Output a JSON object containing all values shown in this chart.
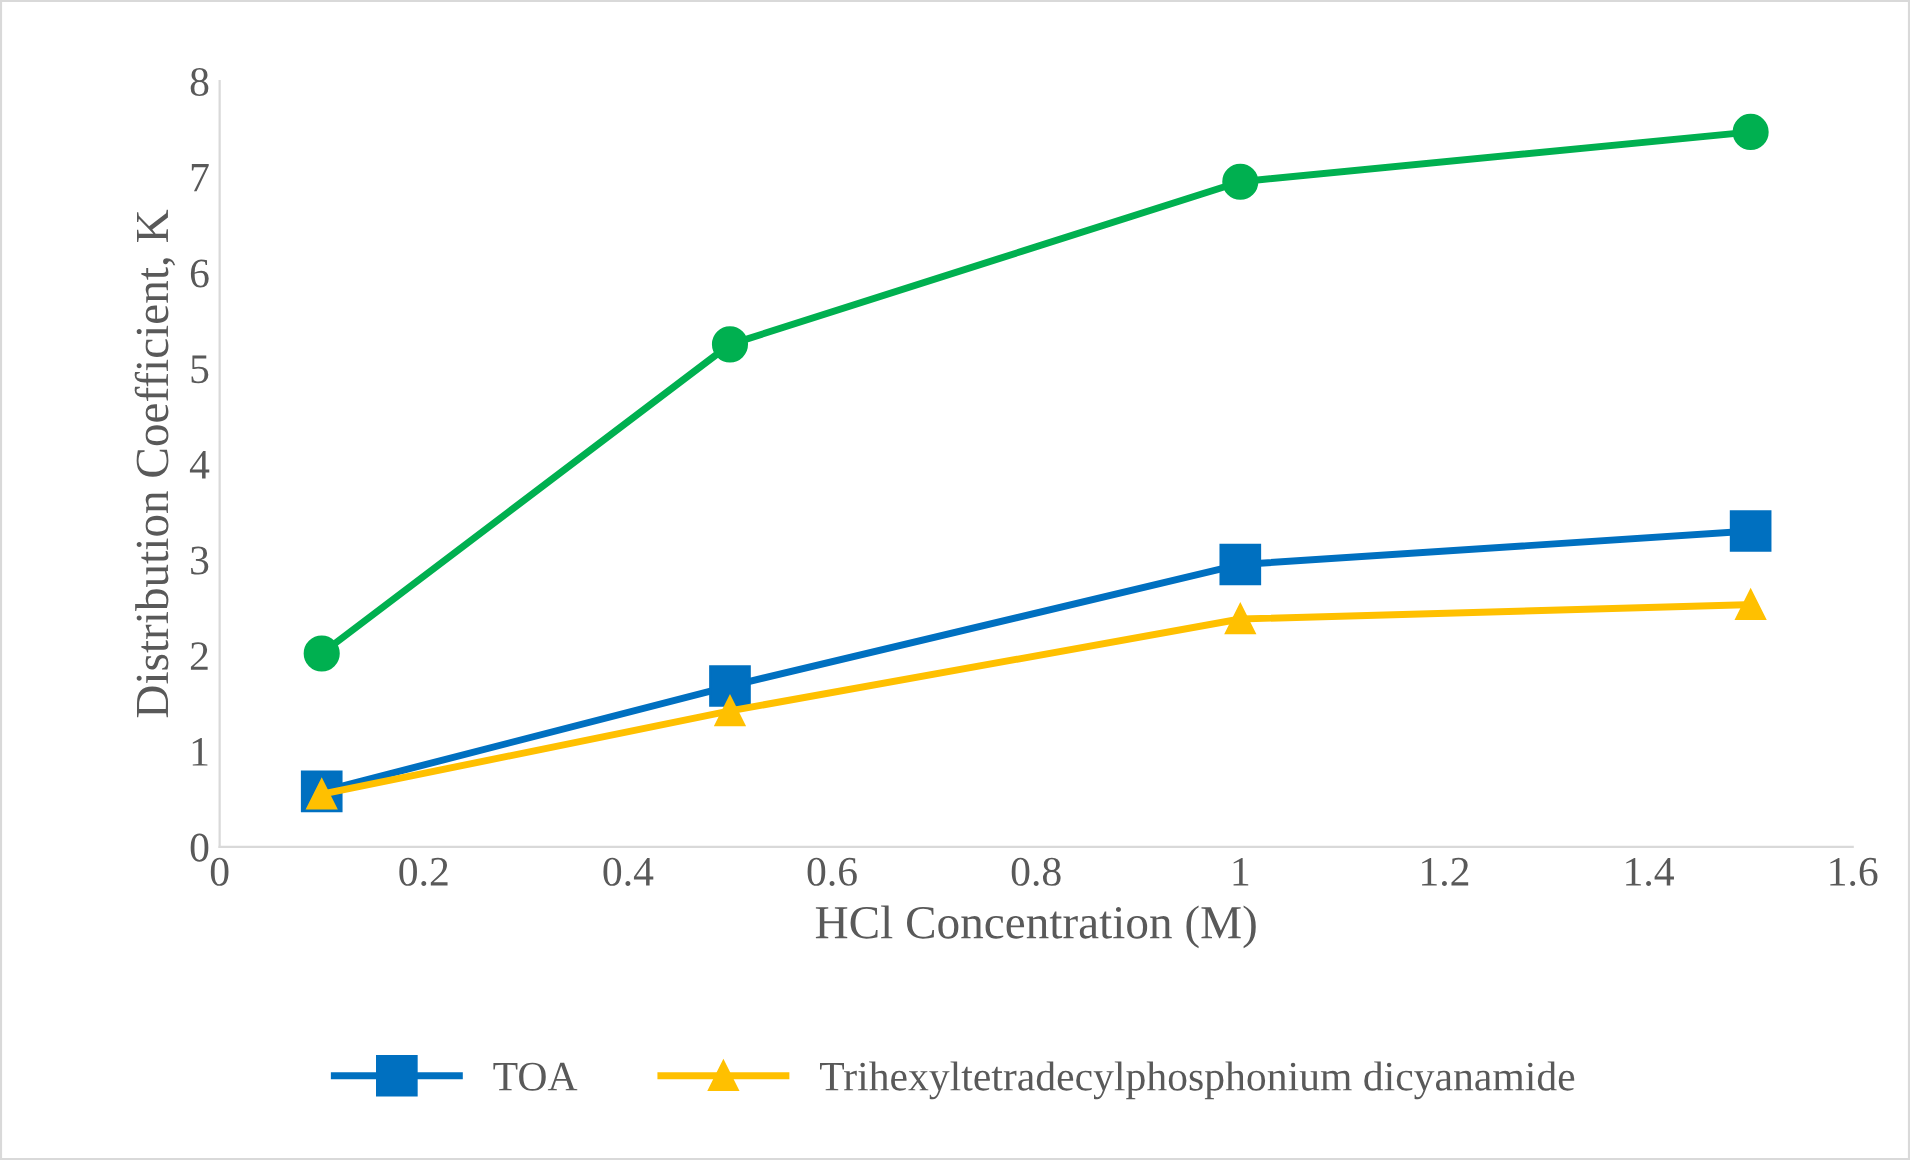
{
  "chart_data": {
    "type": "line",
    "xlabel": "HCl Concentration (M)",
    "ylabel": "Distribution Coefficient, K",
    "x": [
      0.1,
      0.5,
      1,
      1.5
    ],
    "series": [
      {
        "name": "TOA",
        "color": "#0070c0",
        "marker": "square",
        "values": [
          0.58,
          1.68,
          2.95,
          3.3
        ]
      },
      {
        "color": "#00b050",
        "marker": "circle",
        "values": [
          2.02,
          5.25,
          6.95,
          7.47
        ]
      },
      {
        "name": "Trihexyltetradecylphosphonium dicyanamide",
        "color": "#ffc000",
        "marker": "triangle",
        "values": [
          0.55,
          1.42,
          2.38,
          2.53
        ]
      }
    ],
    "xlim": [
      0,
      1.6
    ],
    "xticks": [
      0,
      0.2,
      0.4,
      0.6,
      0.8,
      1,
      1.2,
      1.4,
      1.6
    ],
    "ylim": [
      0,
      8
    ],
    "yticks": [
      0,
      1,
      2,
      3,
      4,
      5,
      6,
      7,
      8
    ],
    "grid": false,
    "legend": "bottom",
    "line_style": "solid"
  }
}
